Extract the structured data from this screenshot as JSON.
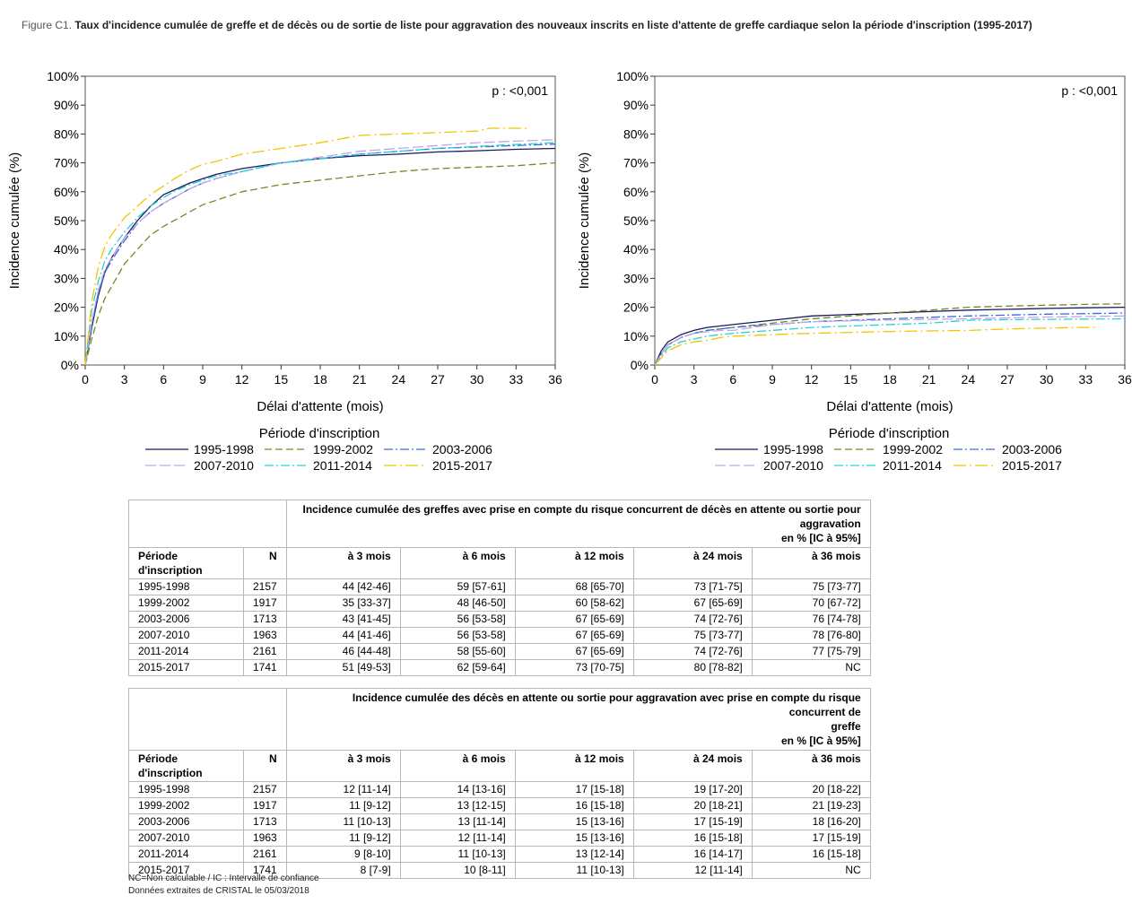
{
  "figure": {
    "label": "Figure C1.",
    "title": "Taux d'incidence cumulée de greffe et de décès ou de sortie de liste pour aggravation des nouveaux inscrits en liste d'attente de greffe cardiaque selon la période d'inscription (1995-2017)"
  },
  "legend_title": "Période d'inscription",
  "series_styles": [
    {
      "name": "1995-1998",
      "color": "#1a1a5e",
      "dash": "none"
    },
    {
      "name": "1999-2002",
      "color": "#6b8e23",
      "dash": "8,4"
    },
    {
      "name": "2003-2006",
      "color": "#3a6fd8",
      "dash": "10,3,2,3"
    },
    {
      "name": "2007-2010",
      "color": "#c8a2e8",
      "dash": "12,4"
    },
    {
      "name": "2011-2014",
      "color": "#22d3d3",
      "dash": "10,3,2,3"
    },
    {
      "name": "2015-2017",
      "color": "#f2c500",
      "dash": "14,4,2,4"
    }
  ],
  "chart_data": [
    {
      "type": "line",
      "annotation": "p : <0,001",
      "xlabel": "Délai d'attente (mois)",
      "ylabel": "Incidence cumulée (%)",
      "xlim": [
        0,
        36
      ],
      "ylim": [
        0,
        100
      ],
      "xticks": [
        0,
        3,
        6,
        9,
        12,
        15,
        18,
        21,
        24,
        27,
        30,
        33,
        36
      ],
      "yticks": [
        0,
        10,
        20,
        30,
        40,
        50,
        60,
        70,
        80,
        90,
        100
      ],
      "series": [
        {
          "name": "1995-1998",
          "x": [
            0,
            0.5,
            1,
            1.5,
            2,
            3,
            4,
            5,
            6,
            7,
            8,
            9,
            10,
            12,
            15,
            18,
            21,
            24,
            27,
            30,
            33,
            36
          ],
          "values": [
            0,
            13,
            24,
            32,
            37,
            44,
            50,
            55,
            59,
            61,
            63,
            64.5,
            66,
            68,
            70,
            71.5,
            72.5,
            73,
            73.8,
            74.2,
            74.7,
            75
          ]
        },
        {
          "name": "1999-2002",
          "x": [
            0,
            0.5,
            1,
            1.5,
            2,
            3,
            4,
            5,
            6,
            7,
            8,
            9,
            10,
            12,
            15,
            18,
            21,
            24,
            27,
            30,
            33,
            36
          ],
          "values": [
            0,
            9,
            17,
            23,
            27,
            35,
            40,
            45,
            48,
            50.5,
            53,
            55.5,
            57,
            60,
            62.5,
            64,
            65.5,
            67,
            68,
            68.5,
            69,
            70
          ]
        },
        {
          "name": "2003-2006",
          "x": [
            0,
            0.5,
            1,
            1.5,
            2,
            3,
            4,
            5,
            6,
            7,
            8,
            9,
            10,
            12,
            15,
            18,
            21,
            24,
            27,
            30,
            33,
            36
          ],
          "values": [
            0,
            14,
            25,
            32,
            36,
            43,
            49,
            53,
            56,
            58.5,
            61,
            63,
            64.5,
            67,
            70,
            71.5,
            73,
            74,
            75,
            75.5,
            76,
            76.5
          ]
        },
        {
          "name": "2007-2010",
          "x": [
            0,
            0.5,
            1,
            1.5,
            2,
            3,
            4,
            5,
            6,
            7,
            8,
            9,
            10,
            12,
            15,
            18,
            21,
            24,
            27,
            30,
            33,
            36
          ],
          "values": [
            0,
            15,
            26,
            33,
            37,
            44,
            49,
            53,
            56,
            58.5,
            61,
            63,
            64.5,
            67,
            70,
            72,
            74,
            75,
            76,
            77,
            77.5,
            78
          ]
        },
        {
          "name": "2011-2014",
          "x": [
            0,
            0.5,
            1,
            1.5,
            2,
            3,
            4,
            5,
            6,
            7,
            8,
            9,
            10,
            12,
            15,
            18,
            21,
            24,
            27,
            30,
            33,
            36
          ],
          "values": [
            0,
            19,
            29,
            36,
            40,
            46,
            51,
            55,
            58,
            60.5,
            62.5,
            64,
            65.5,
            67,
            70,
            71.5,
            73,
            74,
            75,
            75.7,
            76.4,
            77
          ]
        },
        {
          "name": "2015-2017",
          "x": [
            0,
            0.5,
            1,
            1.5,
            2,
            3,
            4,
            5,
            6,
            7,
            8,
            9,
            10,
            12,
            15,
            18,
            21,
            24,
            27,
            30,
            31,
            33,
            34
          ],
          "values": [
            0,
            22,
            34,
            41,
            45,
            51,
            55,
            59,
            62,
            65,
            67.5,
            69.5,
            70.5,
            73,
            75,
            77,
            79.5,
            80,
            80.5,
            81,
            82,
            82,
            82
          ]
        }
      ]
    },
    {
      "type": "line",
      "annotation": "p : <0,001",
      "xlabel": "Délai d'attente (mois)",
      "ylabel": "Incidence cumulée (%)",
      "xlim": [
        0,
        36
      ],
      "ylim": [
        0,
        100
      ],
      "xticks": [
        0,
        3,
        6,
        9,
        12,
        15,
        18,
        21,
        24,
        27,
        30,
        33,
        36
      ],
      "yticks": [
        0,
        10,
        20,
        30,
        40,
        50,
        60,
        70,
        80,
        90,
        100
      ],
      "series": [
        {
          "name": "1995-1998",
          "x": [
            0,
            0.5,
            1,
            2,
            3,
            4,
            5,
            6,
            9,
            12,
            15,
            18,
            21,
            24,
            27,
            30,
            33,
            36
          ],
          "values": [
            0,
            5,
            8,
            10.5,
            12,
            13,
            13.5,
            14,
            15.5,
            17,
            17.5,
            18,
            18.5,
            19,
            19.3,
            19.6,
            19.8,
            20
          ]
        },
        {
          "name": "1999-2002",
          "x": [
            0,
            0.5,
            1,
            2,
            3,
            4,
            5,
            6,
            9,
            12,
            15,
            18,
            21,
            24,
            27,
            30,
            33,
            36
          ],
          "values": [
            0,
            4,
            7,
            9.5,
            11,
            12,
            12.5,
            13,
            14.5,
            16,
            17,
            18,
            19,
            20,
            20.4,
            20.7,
            21,
            21.2
          ]
        },
        {
          "name": "2003-2006",
          "x": [
            0,
            0.5,
            1,
            2,
            3,
            4,
            5,
            6,
            9,
            12,
            15,
            18,
            21,
            24,
            27,
            30,
            33,
            36
          ],
          "values": [
            0,
            4,
            7,
            9.5,
            11,
            12,
            12.5,
            13,
            14,
            15,
            15.5,
            16,
            16.5,
            17,
            17.3,
            17.6,
            17.8,
            18
          ]
        },
        {
          "name": "2007-2010",
          "x": [
            0,
            0.5,
            1,
            2,
            3,
            4,
            5,
            6,
            9,
            12,
            15,
            18,
            21,
            24,
            27,
            30,
            33,
            36
          ],
          "values": [
            0,
            4,
            7,
            9.5,
            11,
            11.5,
            12,
            12,
            14,
            15,
            15.3,
            15.6,
            15.8,
            16,
            16.3,
            16.6,
            16.8,
            17
          ]
        },
        {
          "name": "2011-2014",
          "x": [
            0,
            0.5,
            1,
            2,
            3,
            4,
            5,
            6,
            9,
            12,
            15,
            18,
            21,
            24,
            27,
            30,
            33,
            36
          ],
          "values": [
            0,
            3,
            6,
            8,
            9,
            10,
            10.5,
            11,
            12,
            13,
            13.5,
            14,
            14.5,
            15.5,
            15.7,
            15.8,
            15.9,
            16
          ]
        },
        {
          "name": "2015-2017",
          "x": [
            0,
            0.5,
            1,
            2,
            3,
            4,
            5,
            6,
            9,
            12,
            15,
            18,
            21,
            24,
            27,
            30,
            33,
            34
          ],
          "values": [
            0,
            2.5,
            5,
            7,
            8,
            8.5,
            9.5,
            10,
            10.5,
            11,
            11.3,
            11.6,
            11.8,
            12,
            12.5,
            12.8,
            13,
            13
          ]
        }
      ]
    }
  ],
  "tables": [
    {
      "header_line1": "Incidence cumulée des greffes avec prise en compte du risque concurrent de décès en attente ou sortie pour",
      "header_line2": "aggravation",
      "header_line3": "en % [IC à 95%]",
      "col_period_1": "Période",
      "col_period_2": "d'inscription",
      "col_n": "N",
      "cols": [
        "à 3 mois",
        "à 6 mois",
        "à 12 mois",
        "à 24 mois",
        "à 36 mois"
      ],
      "rows": [
        [
          "1995-1998",
          "2157",
          "44 [42-46]",
          "59 [57-61]",
          "68 [65-70]",
          "73 [71-75]",
          "75 [73-77]"
        ],
        [
          "1999-2002",
          "1917",
          "35 [33-37]",
          "48 [46-50]",
          "60 [58-62]",
          "67 [65-69]",
          "70 [67-72]"
        ],
        [
          "2003-2006",
          "1713",
          "43 [41-45]",
          "56 [53-58]",
          "67 [65-69]",
          "74 [72-76]",
          "76 [74-78]"
        ],
        [
          "2007-2010",
          "1963",
          "44 [41-46]",
          "56 [53-58]",
          "67 [65-69]",
          "75 [73-77]",
          "78 [76-80]"
        ],
        [
          "2011-2014",
          "2161",
          "46 [44-48]",
          "58 [55-60]",
          "67 [65-69]",
          "74 [72-76]",
          "77 [75-79]"
        ],
        [
          "2015-2017",
          "1741",
          "51 [49-53]",
          "62 [59-64]",
          "73 [70-75]",
          "80 [78-82]",
          "NC"
        ]
      ]
    },
    {
      "header_line1": "Incidence cumulée des décès en attente ou sortie pour aggravation avec prise en compte du risque concurrent de",
      "header_line2": "greffe",
      "header_line3": "en % [IC à 95%]",
      "col_period_1": "Période",
      "col_period_2": "d'inscription",
      "col_n": "N",
      "cols": [
        "à 3 mois",
        "à 6 mois",
        "à 12 mois",
        "à 24 mois",
        "à 36 mois"
      ],
      "rows": [
        [
          "1995-1998",
          "2157",
          "12 [11-14]",
          "14 [13-16]",
          "17 [15-18]",
          "19 [17-20]",
          "20 [18-22]"
        ],
        [
          "1999-2002",
          "1917",
          "11 [9-12]",
          "13 [12-15]",
          "16 [15-18]",
          "20 [18-21]",
          "21 [19-23]"
        ],
        [
          "2003-2006",
          "1713",
          "11 [10-13]",
          "13 [11-14]",
          "15 [13-16]",
          "17 [15-19]",
          "18 [16-20]"
        ],
        [
          "2007-2010",
          "1963",
          "11 [9-12]",
          "12 [11-14]",
          "15 [13-16]",
          "16 [15-18]",
          "17 [15-19]"
        ],
        [
          "2011-2014",
          "2161",
          "9 [8-10]",
          "11 [10-13]",
          "13 [12-14]",
          "16 [14-17]",
          "16 [15-18]"
        ],
        [
          "2015-2017",
          "1741",
          "8 [7-9]",
          "10 [8-11]",
          "11 [10-13]",
          "12 [11-14]",
          "NC"
        ]
      ]
    }
  ],
  "footnote_1": "NC=Non calculable / IC : Intervalle de confiance",
  "footnote_2": "Données extraites de CRISTAL le 05/03/2018"
}
